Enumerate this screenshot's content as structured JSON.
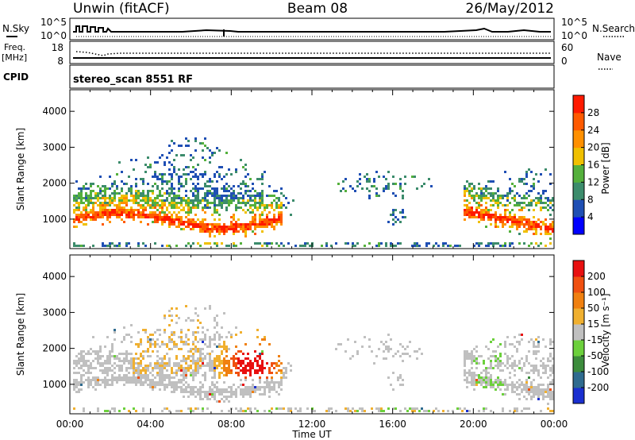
{
  "header": {
    "title_left": "Unwin (fitACF)",
    "title_center": "Beam 08",
    "title_right": "26/May/2012"
  },
  "status_panels": {
    "nsky_label": "N.Sky",
    "nsearch_label": "N.Search",
    "nsky_ticks": [
      "10^5",
      "10^0"
    ],
    "nsearch_ticks": [
      "10^5",
      "10^0"
    ],
    "freq_label": "Freq.",
    "freq_unit": "[MHz]",
    "freq_ticks": [
      "18",
      "8"
    ],
    "nave_label": "Nave",
    "nave_ticks": [
      "60",
      "0"
    ],
    "cpid_label": "CPID",
    "cpid_text": "stereo_scan 8551 RF"
  },
  "chart_data": [
    {
      "type": "heatmap",
      "name": "power",
      "ylabel": "Slant Range [km]",
      "xlabel": "",
      "colorbar_label": "Power [dB]",
      "colorbar_ticks": [
        "28",
        "24",
        "20",
        "16",
        "12",
        "8",
        "4"
      ],
      "colorbar_colors": [
        "#0000ff",
        "#1f4fb4",
        "#3c8c6c",
        "#54b03c",
        "#f0c000",
        "#ff9000",
        "#ff5a00",
        "#ff1a00"
      ],
      "yticks": [
        1000,
        2000,
        3000,
        4000
      ],
      "ylim": [
        180,
        4600
      ],
      "xlim_hours": [
        0,
        24
      ]
    },
    {
      "type": "heatmap",
      "name": "velocity",
      "ylabel": "Slant Range [km]",
      "xlabel": "Time UT",
      "colorbar_label": "Velocity [m s⁻¹]",
      "colorbar_ticks": [
        "200",
        "100",
        "50",
        "15",
        "-15",
        "-50",
        "-100",
        "-200"
      ],
      "colorbar_colors": [
        "#1a2fd0",
        "#2f6b8f",
        "#3c8c3c",
        "#6cd03c",
        "#c0c0c0",
        "#f0b030",
        "#f08010",
        "#f05010",
        "#e81010"
      ],
      "yticks": [
        1000,
        2000,
        3000,
        4000
      ],
      "ylim": [
        180,
        4600
      ],
      "xlim_hours": [
        0,
        24
      ],
      "xticks": [
        "00:00",
        "04:00",
        "08:00",
        "12:00",
        "16:00",
        "20:00",
        "00:00"
      ]
    }
  ]
}
